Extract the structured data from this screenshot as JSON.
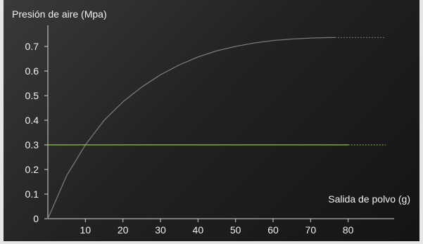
{
  "chart_data": {
    "type": "line",
    "ylabel": "Presión de aire (Mpa)",
    "xlabel": "Salida de polvo (g)",
    "xlim": [
      0,
      90
    ],
    "ylim": [
      0,
      0.8
    ],
    "x_ticks": [
      10,
      20,
      30,
      40,
      50,
      60,
      70,
      80
    ],
    "y_ticks": [
      0,
      0.1,
      0.2,
      0.3,
      0.4,
      0.5,
      0.6,
      0.7
    ],
    "y_tick_labels": [
      "0",
      "0.1",
      "0.2",
      "0.3",
      "0.4",
      "0.5",
      "0.6",
      "0.7"
    ],
    "x_tick_labels": [
      "10",
      "20",
      "30",
      "40",
      "50",
      "60",
      "70",
      "80"
    ],
    "series": [
      {
        "color": "#7a7a7a",
        "x": [
          0,
          5,
          10,
          15,
          20,
          25,
          30,
          35,
          40,
          45,
          50,
          55,
          60,
          65,
          70,
          75,
          76.5
        ],
        "y": [
          0,
          0.175,
          0.3,
          0.4,
          0.475,
          0.535,
          0.585,
          0.625,
          0.657,
          0.682,
          0.7,
          0.714,
          0.724,
          0.73,
          0.734,
          0.736,
          0.736
        ],
        "dashed_extension_to_x": 90
      },
      {
        "color": "#8dc63f",
        "x": [
          0,
          80
        ],
        "y": [
          0.3,
          0.3
        ],
        "dashed_extension_to_x": 90
      }
    ]
  }
}
